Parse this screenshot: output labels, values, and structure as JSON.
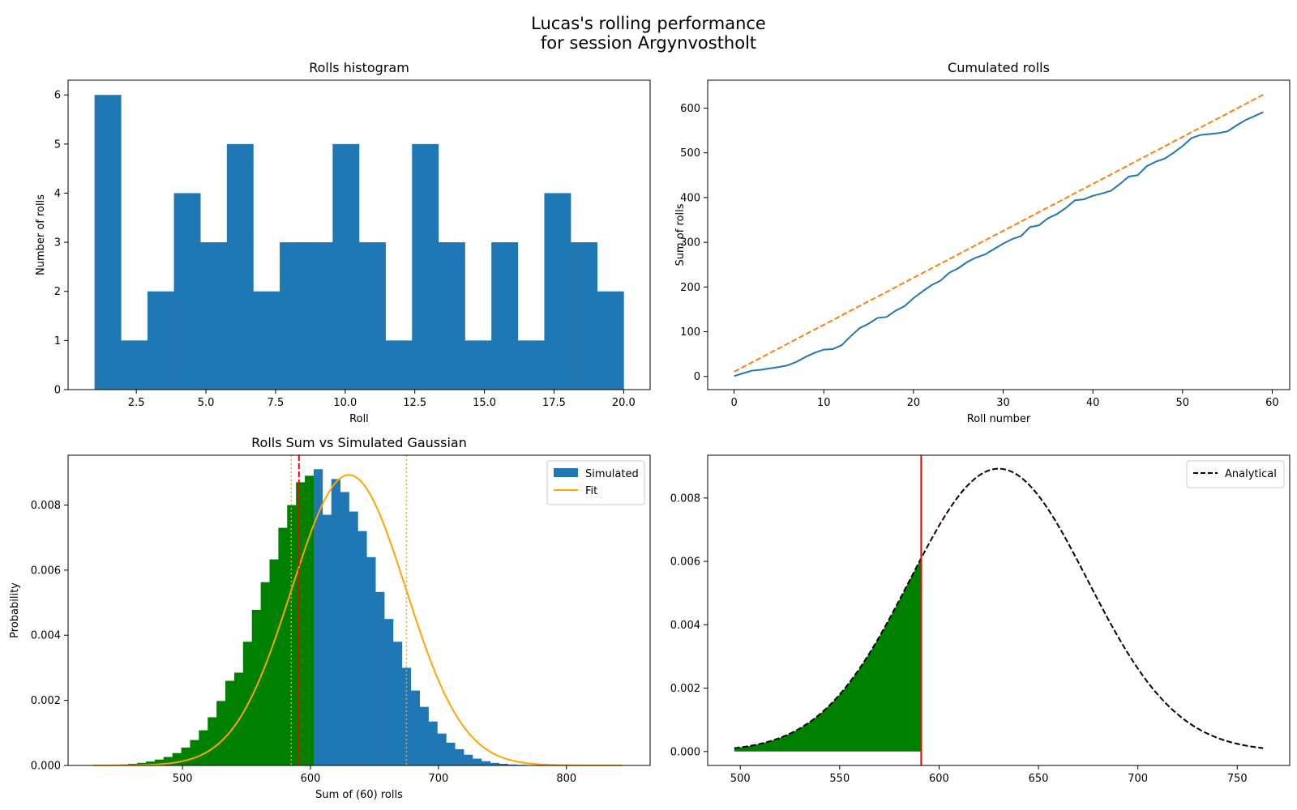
{
  "figure": {
    "title_line1": "Lucas's rolling performance",
    "title_line2": "for session Argynvostholt"
  },
  "chart_data": [
    {
      "type": "bar",
      "title": "Rolls histogram",
      "xlabel": "Roll",
      "ylabel": "Number of rolls",
      "xlim": [
        0.05,
        20.95
      ],
      "ylim": [
        0,
        6.3
      ],
      "bin_edges": [
        1,
        1.95,
        2.9,
        3.85,
        4.8,
        5.75,
        6.7,
        7.65,
        8.6,
        9.55,
        10.5,
        11.45,
        12.4,
        13.35,
        14.3,
        15.25,
        16.2,
        17.15,
        18.1,
        19.05,
        20
      ],
      "values": [
        6,
        1,
        2,
        4,
        3,
        5,
        2,
        3,
        3,
        5,
        3,
        1,
        5,
        3,
        1,
        3,
        1,
        4,
        3,
        2
      ],
      "xticks": [
        2.5,
        5.0,
        7.5,
        10.0,
        12.5,
        15.0,
        17.5,
        20.0
      ],
      "xtick_labels": [
        "2.5",
        "5.0",
        "7.5",
        "10.0",
        "12.5",
        "15.0",
        "17.5",
        "20.0"
      ],
      "yticks": [
        0,
        1,
        2,
        3,
        4,
        5,
        6
      ],
      "ytick_labels": [
        "0",
        "1",
        "2",
        "3",
        "4",
        "5",
        "6"
      ],
      "color": "#1f77b4"
    },
    {
      "type": "line",
      "title": "Cumulated rolls",
      "xlabel": "Roll number",
      "ylabel": "Sum of rolls",
      "xlim": [
        -2.95,
        61.95
      ],
      "ylim": [
        -29.45,
        662.45
      ],
      "series": [
        {
          "style": "solid",
          "color": "#1f77b4",
          "x": [
            0,
            1,
            2,
            3,
            4,
            5,
            6,
            7,
            8,
            9,
            10,
            11,
            12,
            13,
            14,
            15,
            16,
            17,
            18,
            19,
            20,
            21,
            22,
            23,
            24,
            25,
            26,
            27,
            28,
            29,
            30,
            31,
            32,
            33,
            34,
            35,
            36,
            37,
            38,
            39,
            40,
            41,
            42,
            43,
            44,
            45,
            46,
            47,
            48,
            49,
            50,
            51,
            52,
            53,
            54,
            55,
            56,
            57,
            58,
            59
          ],
          "values": [
            1,
            7,
            13,
            15,
            18,
            21,
            25,
            33,
            44,
            53,
            60,
            61,
            70,
            90,
            108,
            118,
            131,
            133,
            147,
            157,
            175,
            190,
            204,
            214,
            232,
            242,
            256,
            266,
            273,
            285,
            297,
            307,
            314,
            334,
            338,
            354,
            363,
            377,
            394,
            396,
            404,
            409,
            415,
            430,
            447,
            450,
            470,
            480,
            487,
            500,
            515,
            533,
            540,
            542,
            544,
            548,
            561,
            573,
            582,
            591
          ]
        },
        {
          "style": "dashed",
          "color": "#ff7f0e",
          "x": [
            0,
            59
          ],
          "values": [
            10.5,
            630
          ]
        }
      ],
      "xticks": [
        0,
        10,
        20,
        30,
        40,
        50,
        60
      ],
      "xtick_labels": [
        "0",
        "10",
        "20",
        "30",
        "40",
        "50",
        "60"
      ],
      "yticks": [
        0,
        100,
        200,
        300,
        400,
        500,
        600
      ],
      "ytick_labels": [
        "0",
        "100",
        "200",
        "300",
        "400",
        "500",
        "600"
      ]
    },
    {
      "type": "bar",
      "title": "Rolls Sum vs Simulated Gaussian",
      "xlabel": "Sum of (60) rolls",
      "ylabel": "Probability",
      "xlim": [
        410.6,
        865.4
      ],
      "ylim": [
        0,
        0.00953
      ],
      "hist_x_start": 430,
      "bin_width": 6.9,
      "values": [
        1e-05,
        1e-05,
        2e-05,
        3e-05,
        5e-05,
        8e-05,
        0.00012,
        0.00018,
        0.00026,
        0.00038,
        0.00055,
        0.00078,
        0.00108,
        0.00148,
        0.00198,
        0.0026,
        0.00285,
        0.0038,
        0.00478,
        0.00563,
        0.00633,
        0.0073,
        0.008,
        0.0087,
        0.0089,
        0.0091,
        0.0077,
        0.0088,
        0.0084,
        0.0078,
        0.0072,
        0.0064,
        0.00533,
        0.0045,
        0.0038,
        0.003,
        0.0023,
        0.0018,
        0.00135,
        0.00098,
        0.0007,
        0.0005,
        0.00033,
        0.00021,
        0.00013,
        8e-05,
        5e-05,
        3e-05,
        2e-05,
        1e-05,
        1e-05,
        1e-05,
        1e-05,
        1e-05,
        1e-05,
        1e-05,
        1e-05,
        1e-05,
        1e-05,
        1e-05
      ],
      "highlight_below": 596,
      "highlight_color": "#008000",
      "series": [
        {
          "name": "Simulated",
          "color": "#1f77b4"
        },
        {
          "name": "Fit",
          "color": "#ffa500",
          "mean": 630,
          "sd": 44.7,
          "x_range": [
            430,
            845
          ]
        }
      ],
      "markers": [
        {
          "x": 591,
          "style": "dashed",
          "color": "#ff0000"
        },
        {
          "x": 585,
          "style": "dotted",
          "color": "#ffa500"
        },
        {
          "x": 675,
          "style": "dotted",
          "color": "#ffa500"
        }
      ],
      "xticks": [
        500,
        600,
        700,
        800
      ],
      "xtick_labels": [
        "500",
        "600",
        "700",
        "800"
      ],
      "yticks": [
        0,
        0.002,
        0.004,
        0.006,
        0.008
      ],
      "ytick_labels": [
        "0.000",
        "0.002",
        "0.004",
        "0.006",
        "0.008"
      ],
      "legend_position": "upper right"
    },
    {
      "type": "line",
      "title": "",
      "xlabel": "",
      "ylabel": "",
      "xlim": [
        483.6,
        776.4
      ],
      "ylim": [
        -0.00044,
        0.00935
      ],
      "series": [
        {
          "name": "Analytical",
          "style": "dashed",
          "color": "#000000",
          "mean": 630,
          "sd": 44.7,
          "x_range": [
            497,
            763
          ]
        }
      ],
      "shade": {
        "from": 497,
        "to": 591,
        "color": "#008000"
      },
      "marker": {
        "x": 591,
        "color": "#ff0000"
      },
      "xticks": [
        500,
        550,
        600,
        650,
        700,
        750
      ],
      "xtick_labels": [
        "500",
        "550",
        "600",
        "650",
        "700",
        "750"
      ],
      "yticks": [
        0,
        0.002,
        0.004,
        0.006,
        0.008
      ],
      "ytick_labels": [
        "0.000",
        "0.002",
        "0.004",
        "0.006",
        "0.008"
      ],
      "legend_position": "upper right"
    }
  ]
}
